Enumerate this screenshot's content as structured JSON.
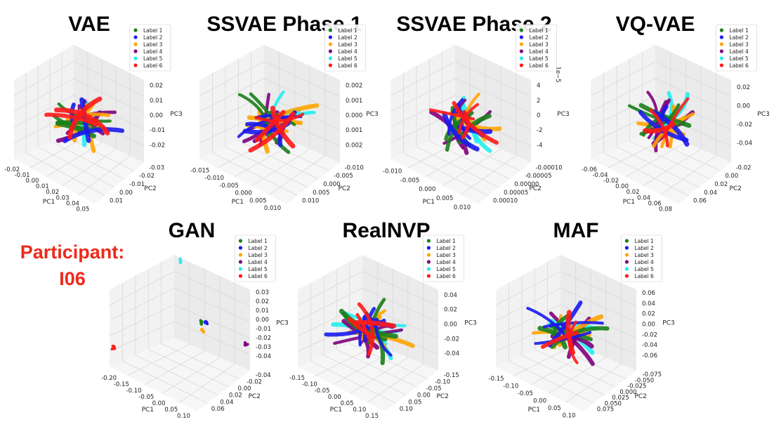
{
  "participant": {
    "label": "Participant:",
    "id": "I06"
  },
  "legend_labels": [
    "Label 1",
    "Label 2",
    "Label 3",
    "Label 4",
    "Label 5",
    "Label 6"
  ],
  "colors": [
    "#1a7f1a",
    "#1a1aee",
    "#ffa500",
    "#800080",
    "#22eeee",
    "#ff1a1a"
  ],
  "chart_data": [
    {
      "type": "scatter",
      "title": "VAE",
      "xlabel": "PC1",
      "ylabel": "PC2",
      "zlabel": "PC3",
      "x_ticks": [
        "-0.02",
        "-0.01",
        "0.00",
        "0.01",
        "0.02",
        "0.03",
        "0.04",
        "0.05"
      ],
      "y_ticks": [
        "0.01",
        "0.00",
        "-0.01",
        "-0.02",
        "-0.03"
      ],
      "z_ticks": [
        "0.02",
        "0.01",
        "0.00",
        "-0.01",
        "-0.02"
      ],
      "z_exponent": "",
      "series": [
        {
          "name": "Label 1"
        },
        {
          "name": "Label 2"
        },
        {
          "name": "Label 3"
        },
        {
          "name": "Label 4"
        },
        {
          "name": "Label 5"
        },
        {
          "name": "Label 6"
        }
      ]
    },
    {
      "type": "scatter",
      "title": "SSVAE Phase 1",
      "xlabel": "PC1",
      "ylabel": "PC2",
      "zlabel": "PC3",
      "x_ticks": [
        "-0.015",
        "-0.010",
        "-0.005",
        "0.000",
        "0.005",
        "0.010"
      ],
      "y_ticks": [
        "0.010",
        "0.005",
        "0.000",
        "-0.005",
        "-0.010"
      ],
      "z_ticks": [
        "0.002",
        "0.001",
        "0.000",
        "0.001",
        "0.002"
      ],
      "z_exponent": "",
      "series": [
        {
          "name": "Label 1"
        },
        {
          "name": "Label 2"
        },
        {
          "name": "Label 3"
        },
        {
          "name": "Label 4"
        },
        {
          "name": "Label 5"
        },
        {
          "name": "Label 6"
        }
      ]
    },
    {
      "type": "scatter",
      "title": "SSVAE Phase 2",
      "xlabel": "PC1",
      "ylabel": "PC2",
      "zlabel": "PC3",
      "x_ticks": [
        "-0.010",
        "-0.005",
        "0.000",
        "0.005",
        "0.010"
      ],
      "y_ticks": [
        "0.00010",
        "0.00005",
        "0.00000",
        "-0.00005",
        "-0.00010"
      ],
      "z_ticks": [
        "4",
        "2",
        "0",
        "-2",
        "-4"
      ],
      "z_exponent": "1e−5",
      "series": [
        {
          "name": "Label 1"
        },
        {
          "name": "Label 2"
        },
        {
          "name": "Label 3"
        },
        {
          "name": "Label 4"
        },
        {
          "name": "Label 5"
        },
        {
          "name": "Label 6"
        }
      ]
    },
    {
      "type": "scatter",
      "title": "VQ-VAE",
      "xlabel": "PC1",
      "ylabel": "PC2",
      "zlabel": "PC3",
      "x_ticks": [
        "-0.06",
        "-0.04",
        "-0.02",
        "0.00",
        "0.02",
        "0.04",
        "0.06",
        "0.08"
      ],
      "y_ticks": [
        "0.06",
        "0.04",
        "0.02",
        "0.00",
        "-0.02"
      ],
      "z_ticks": [
        "0.02",
        "0.00",
        "-0.02",
        "-0.04"
      ],
      "z_exponent": "",
      "series": [
        {
          "name": "Label 1"
        },
        {
          "name": "Label 2"
        },
        {
          "name": "Label 3"
        },
        {
          "name": "Label 4"
        },
        {
          "name": "Label 5"
        },
        {
          "name": "Label 6"
        }
      ]
    },
    {
      "type": "scatter",
      "title": "GAN",
      "xlabel": "PC1",
      "ylabel": "PC2",
      "zlabel": "PC3",
      "x_ticks": [
        "-0.20",
        "-0.15",
        "-0.10",
        "-0.05",
        "0.00",
        "0.05",
        "0.10"
      ],
      "y_ticks": [
        "0.06",
        "0.04",
        "0.02",
        "0.00",
        "-0.02",
        "-0.04"
      ],
      "z_ticks": [
        "0.03",
        "0.02",
        "0.01",
        "0.00",
        "-0.01",
        "-0.02",
        "-0.03",
        "-0.04"
      ],
      "z_exponent": "",
      "series": [
        {
          "name": "Label 1"
        },
        {
          "name": "Label 2"
        },
        {
          "name": "Label 3"
        },
        {
          "name": "Label 4"
        },
        {
          "name": "Label 5"
        },
        {
          "name": "Label 6"
        }
      ]
    },
    {
      "type": "scatter",
      "title": "RealNVP",
      "xlabel": "PC1",
      "ylabel": "PC2",
      "zlabel": "PC3",
      "x_ticks": [
        "-0.15",
        "-0.10",
        "-0.05",
        "0.00",
        "0.05",
        "0.10",
        "0.15"
      ],
      "y_ticks": [
        "0.10",
        "0.05",
        "0.00",
        "-0.05",
        "-0.10",
        "-0.15"
      ],
      "z_ticks": [
        "0.04",
        "0.02",
        "0.00",
        "-0.02",
        "-0.04"
      ],
      "z_exponent": "",
      "series": [
        {
          "name": "Label 1"
        },
        {
          "name": "Label 2"
        },
        {
          "name": "Label 3"
        },
        {
          "name": "Label 4"
        },
        {
          "name": "Label 5"
        },
        {
          "name": "Label 6"
        }
      ]
    },
    {
      "type": "scatter",
      "title": "MAF",
      "xlabel": "PC1",
      "ylabel": "PC2",
      "zlabel": "PC3",
      "x_ticks": [
        "-0.15",
        "-0.10",
        "-0.05",
        "0.00",
        "0.05",
        "0.10"
      ],
      "y_ticks": [
        "0.075",
        "0.050",
        "0.025",
        "0.000",
        "-0.025",
        "-0.050",
        "-0.075"
      ],
      "z_ticks": [
        "0.06",
        "0.04",
        "0.02",
        "0.00",
        "-0.02",
        "-0.04",
        "-0.06"
      ],
      "z_exponent": "",
      "series": [
        {
          "name": "Label 1"
        },
        {
          "name": "Label 2"
        },
        {
          "name": "Label 3"
        },
        {
          "name": "Label 4"
        },
        {
          "name": "Label 5"
        },
        {
          "name": "Label 6"
        }
      ]
    }
  ]
}
